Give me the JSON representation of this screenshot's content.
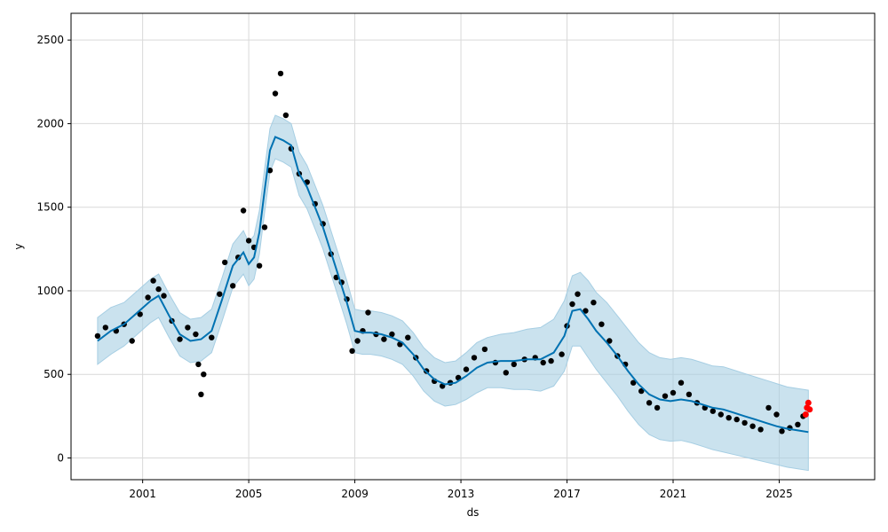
{
  "chart_data": {
    "type": "line",
    "title": "",
    "xlabel": "ds",
    "ylabel": "y",
    "xlim": [
      1998.3,
      2028.6
    ],
    "ylim": [
      -130,
      2660
    ],
    "grid": true,
    "x_ticks": [
      {
        "value": 2001,
        "label": "2001"
      },
      {
        "value": 2005,
        "label": "2005"
      },
      {
        "value": 2009,
        "label": "2009"
      },
      {
        "value": 2013,
        "label": "2013"
      },
      {
        "value": 2017,
        "label": "2017"
      },
      {
        "value": 2021,
        "label": "2021"
      },
      {
        "value": 2025,
        "label": "2025"
      }
    ],
    "y_ticks": [
      {
        "value": 0,
        "label": "0"
      },
      {
        "value": 500,
        "label": "500"
      },
      {
        "value": 1000,
        "label": "1000"
      },
      {
        "value": 1500,
        "label": "1500"
      },
      {
        "value": 2000,
        "label": "2000"
      },
      {
        "value": 2500,
        "label": "2500"
      }
    ],
    "colors": {
      "observed": "#000000",
      "forecast": "#0072B2",
      "interval": "#A6CEE3",
      "recent": "#FF0000",
      "grid": "#d9d9d9"
    },
    "observed": {
      "x": [
        1999.3,
        1999.6,
        2000.0,
        2000.3,
        2000.6,
        2000.9,
        2001.2,
        2001.4,
        2001.6,
        2001.8,
        2002.1,
        2002.4,
        2002.7,
        2003.0,
        2003.1,
        2003.2,
        2003.3,
        2003.6,
        2003.9,
        2004.1,
        2004.4,
        2004.6,
        2004.8,
        2005.0,
        2005.2,
        2005.4,
        2005.6,
        2005.8,
        2006.0,
        2006.2,
        2006.4,
        2006.6,
        2006.9,
        2007.2,
        2007.5,
        2007.8,
        2008.1,
        2008.3,
        2008.5,
        2008.7,
        2008.9,
        2009.1,
        2009.3,
        2009.5,
        2009.8,
        2010.1,
        2010.4,
        2010.7,
        2011.0,
        2011.3,
        2011.7,
        2012.0,
        2012.3,
        2012.6,
        2012.9,
        2013.2,
        2013.5,
        2013.9,
        2014.3,
        2014.7,
        2015.0,
        2015.4,
        2015.8,
        2016.1,
        2016.4,
        2016.8,
        2017.0,
        2017.2,
        2017.4,
        2017.7,
        2018.0,
        2018.3,
        2018.6,
        2018.9,
        2019.2,
        2019.5,
        2019.8,
        2020.1,
        2020.4,
        2020.7,
        2021.0,
        2021.3,
        2021.6,
        2021.9,
        2022.2,
        2022.5,
        2022.8,
        2023.1,
        2023.4,
        2023.7,
        2024.0,
        2024.3,
        2024.6,
        2024.9,
        2025.1,
        2025.4,
        2025.7,
        2025.9
      ],
      "y": [
        730,
        780,
        760,
        800,
        700,
        860,
        960,
        1060,
        1010,
        970,
        820,
        710,
        780,
        740,
        560,
        380,
        500,
        720,
        980,
        1170,
        1030,
        1200,
        1480,
        1300,
        1260,
        1150,
        1380,
        1720,
        2180,
        2300,
        2050,
        1850,
        1700,
        1650,
        1520,
        1400,
        1220,
        1080,
        1050,
        950,
        640,
        700,
        760,
        870,
        740,
        710,
        740,
        680,
        720,
        600,
        520,
        460,
        430,
        450,
        480,
        530,
        600,
        650,
        570,
        510,
        560,
        590,
        600,
        570,
        580,
        620,
        790,
        920,
        980,
        880,
        930,
        800,
        700,
        610,
        560,
        450,
        400,
        330,
        300,
        370,
        390,
        450,
        380,
        330,
        300,
        280,
        260,
        240,
        230,
        210,
        190,
        170,
        300,
        260,
        160,
        180,
        200,
        250
      ]
    },
    "forecast": {
      "x": [
        1999.3,
        1999.8,
        2000.3,
        2000.8,
        2001.3,
        2001.6,
        2002.0,
        2002.4,
        2002.8,
        2003.2,
        2003.6,
        2004.0,
        2004.4,
        2004.8,
        2005.0,
        2005.2,
        2005.4,
        2005.6,
        2005.8,
        2006.0,
        2006.3,
        2006.6,
        2006.9,
        2007.2,
        2007.5,
        2007.8,
        2008.1,
        2008.4,
        2008.7,
        2009.0,
        2009.3,
        2009.6,
        2010.0,
        2010.4,
        2010.8,
        2011.2,
        2011.6,
        2012.0,
        2012.4,
        2012.8,
        2013.2,
        2013.6,
        2014.0,
        2014.5,
        2015.0,
        2015.5,
        2016.0,
        2016.5,
        2016.9,
        2017.2,
        2017.5,
        2017.8,
        2018.1,
        2018.5,
        2018.9,
        2019.3,
        2019.7,
        2020.1,
        2020.5,
        2020.9,
        2021.3,
        2021.7,
        2022.1,
        2022.5,
        2022.9,
        2023.3,
        2023.7,
        2024.1,
        2024.5,
        2024.9,
        2025.3,
        2025.7,
        2026.1
      ],
      "y": [
        700,
        760,
        800,
        870,
        940,
        970,
        850,
        740,
        700,
        710,
        760,
        950,
        1150,
        1230,
        1160,
        1200,
        1350,
        1600,
        1840,
        1920,
        1900,
        1870,
        1700,
        1620,
        1500,
        1380,
        1230,
        1080,
        930,
        760,
        750,
        750,
        740,
        720,
        690,
        620,
        530,
        470,
        440,
        450,
        490,
        540,
        570,
        580,
        580,
        590,
        590,
        630,
        730,
        880,
        890,
        830,
        760,
        690,
        610,
        520,
        440,
        380,
        350,
        340,
        350,
        340,
        320,
        300,
        290,
        270,
        250,
        230,
        210,
        190,
        175,
        165,
        155
      ]
    },
    "interval": {
      "lower": [
        560,
        620,
        670,
        740,
        810,
        840,
        720,
        610,
        570,
        580,
        630,
        820,
        1020,
        1100,
        1030,
        1070,
        1220,
        1470,
        1710,
        1790,
        1770,
        1740,
        1570,
        1490,
        1370,
        1250,
        1100,
        950,
        800,
        630,
        620,
        620,
        610,
        590,
        560,
        490,
        400,
        340,
        310,
        320,
        350,
        390,
        420,
        420,
        410,
        410,
        400,
        430,
        520,
        670,
        670,
        600,
        530,
        450,
        370,
        280,
        200,
        140,
        110,
        100,
        105,
        90,
        70,
        50,
        35,
        20,
        5,
        -10,
        -25,
        -40,
        -55,
        -65,
        -75
      ],
      "upper": [
        840,
        900,
        930,
        1000,
        1070,
        1100,
        980,
        870,
        830,
        840,
        890,
        1080,
        1280,
        1360,
        1290,
        1330,
        1480,
        1730,
        1970,
        2050,
        2030,
        2000,
        1830,
        1750,
        1630,
        1510,
        1360,
        1210,
        1060,
        890,
        880,
        880,
        870,
        850,
        820,
        750,
        660,
        600,
        570,
        580,
        630,
        690,
        720,
        740,
        750,
        770,
        780,
        830,
        940,
        1090,
        1110,
        1060,
        990,
        930,
        850,
        770,
        690,
        630,
        600,
        590,
        600,
        590,
        570,
        550,
        545,
        525,
        505,
        485,
        465,
        445,
        425,
        415,
        405
      ]
    },
    "recent": {
      "x": [
        2026.0,
        2026.05,
        2026.1,
        2026.15
      ],
      "y": [
        260,
        300,
        330,
        290
      ]
    }
  }
}
